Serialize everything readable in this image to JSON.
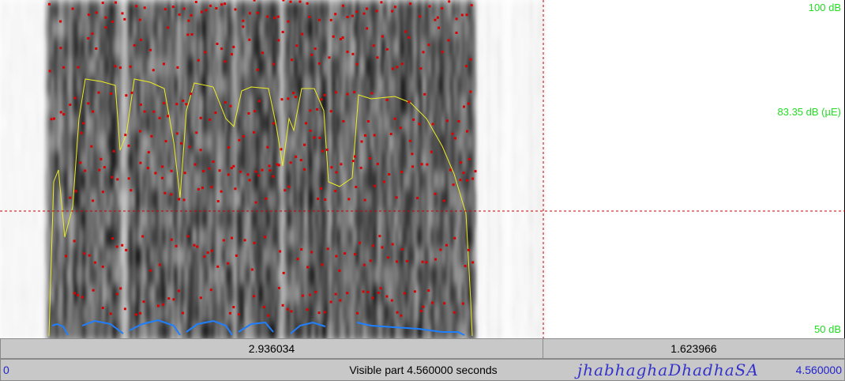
{
  "spectrogram": {
    "db_top": "100 dB",
    "db_mid": "83.35 dB (µE)",
    "db_bottom": "50 dB",
    "cursor_time_s": 2.936034,
    "selection_end_s": 4.56,
    "colors": {
      "formants": "#dd0000",
      "intensity": "#eeee22",
      "pitch": "#1e7fff",
      "cursor": "#cc0000",
      "db_labels": "#22dd22"
    }
  },
  "time_bar": {
    "left_segment": "2.936034",
    "right_segment": "1.623966"
  },
  "bottom_bar": {
    "start": "0",
    "visible": "Visible part 4.560000 seconds",
    "end": "4.560000",
    "annotation": "jhabhaghaDhadhaSA"
  }
}
